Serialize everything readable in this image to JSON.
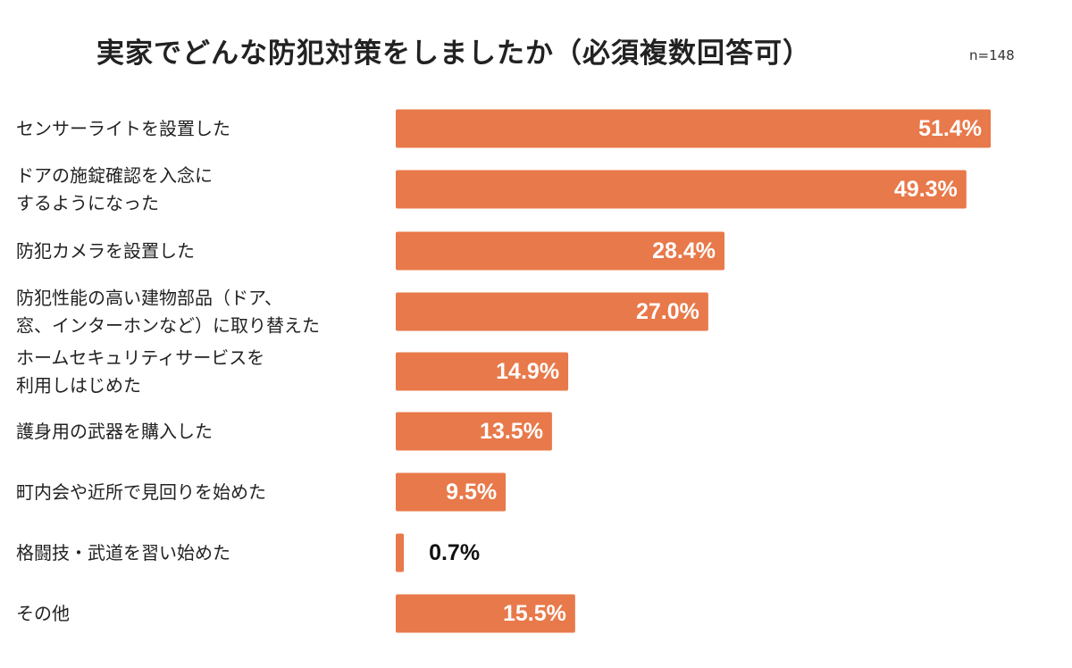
{
  "header": {
    "title": "実家でどんな防犯対策をしましたか（必須複数回答可）",
    "sample_size": "n=148"
  },
  "chart_data": {
    "type": "bar",
    "orientation": "horizontal",
    "title": "実家でどんな防犯対策をしましたか（必須複数回答可）",
    "note": "n=148",
    "unit": "%",
    "bar_color": "#E8794A",
    "categories": [
      [
        "センサーライトを設置した"
      ],
      [
        "ドアの施錠確認を入念に",
        "するようになった"
      ],
      [
        "防犯カメラを設置した"
      ],
      [
        "防犯性能の高い建物部品（ドア、",
        "窓、インターホンなど）に取り替えた"
      ],
      [
        "ホームセキュリティサービスを",
        "利用しはじめた"
      ],
      [
        "護身用の武器を購入した"
      ],
      [
        "町内会や近所で見回りを始めた"
      ],
      [
        "格闘技・武道を習い始めた"
      ],
      [
        "その他"
      ]
    ],
    "values": [
      51.4,
      49.3,
      28.4,
      27.0,
      14.9,
      13.5,
      9.5,
      0.7,
      15.5
    ],
    "value_labels": [
      "51.4%",
      "49.3%",
      "28.4%",
      "27.0%",
      "14.9%",
      "13.5%",
      "9.5%",
      "0.7%",
      "15.5%"
    ],
    "xlim": [
      0,
      51.4
    ]
  }
}
